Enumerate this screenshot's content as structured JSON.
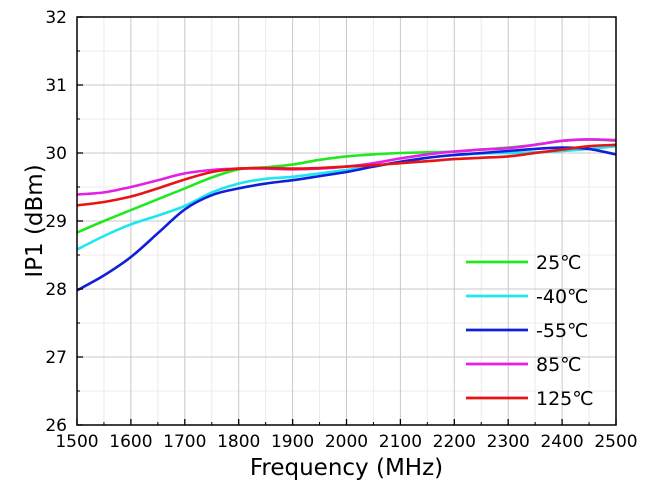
{
  "chart_data": {
    "type": "line",
    "title": "",
    "xlabel": "Frequency  (MHz)",
    "ylabel": "IP1 (dBm)",
    "xlim": [
      1500,
      2500
    ],
    "ylim": [
      26,
      32
    ],
    "xticks": [
      1500,
      1600,
      1700,
      1800,
      1900,
      2000,
      2100,
      2200,
      2300,
      2400,
      2500
    ],
    "yticks": [
      26,
      27,
      28,
      29,
      30,
      31,
      32
    ],
    "grid": true,
    "legend_position": "bottom-right",
    "series": [
      {
        "name": "25℃",
        "color": "#22e822",
        "x": [
          1500,
          1550,
          1600,
          1650,
          1700,
          1750,
          1800,
          1850,
          1900,
          1950,
          2000,
          2050,
          2100,
          2150,
          2200,
          2250,
          2300,
          2350,
          2400,
          2450,
          2500
        ],
        "y": [
          28.83,
          29.0,
          29.16,
          29.32,
          29.48,
          29.64,
          29.76,
          29.79,
          29.83,
          29.9,
          29.95,
          29.98,
          30.0,
          30.01,
          30.02,
          30.05,
          30.08,
          30.12,
          30.18,
          30.2,
          30.18
        ]
      },
      {
        "name": "-40℃",
        "color": "#1ee6f0",
        "x": [
          1500,
          1550,
          1600,
          1650,
          1700,
          1750,
          1800,
          1850,
          1900,
          1950,
          2000,
          2050,
          2100,
          2150,
          2200,
          2250,
          2300,
          2350,
          2400,
          2450,
          2500
        ],
        "y": [
          28.58,
          28.78,
          28.95,
          29.08,
          29.22,
          29.42,
          29.55,
          29.62,
          29.65,
          29.7,
          29.75,
          29.8,
          29.87,
          29.93,
          29.97,
          29.99,
          30.0,
          30.01,
          30.03,
          30.06,
          30.1
        ]
      },
      {
        "name": "-55℃",
        "color": "#1020d8",
        "x": [
          1500,
          1550,
          1600,
          1650,
          1700,
          1750,
          1800,
          1850,
          1900,
          1950,
          2000,
          2050,
          2100,
          2150,
          2200,
          2250,
          2300,
          2350,
          2400,
          2450,
          2500
        ],
        "y": [
          27.98,
          28.2,
          28.47,
          28.82,
          29.17,
          29.38,
          29.48,
          29.55,
          29.6,
          29.66,
          29.72,
          29.8,
          29.87,
          29.93,
          29.97,
          30.0,
          30.03,
          30.06,
          30.08,
          30.06,
          29.98
        ]
      },
      {
        "name": "85℃",
        "color": "#e61ee6",
        "x": [
          1500,
          1550,
          1600,
          1650,
          1700,
          1750,
          1800,
          1850,
          1900,
          1950,
          2000,
          2050,
          2100,
          2150,
          2200,
          2250,
          2300,
          2350,
          2400,
          2450,
          2500
        ],
        "y": [
          29.39,
          29.42,
          29.5,
          29.6,
          29.7,
          29.75,
          29.77,
          29.77,
          29.76,
          29.77,
          29.8,
          29.85,
          29.92,
          29.98,
          30.02,
          30.05,
          30.07,
          30.12,
          30.18,
          30.2,
          30.19
        ]
      },
      {
        "name": "125℃",
        "color": "#e81414",
        "x": [
          1500,
          1550,
          1600,
          1650,
          1700,
          1750,
          1800,
          1850,
          1900,
          1950,
          2000,
          2050,
          2100,
          2150,
          2200,
          2250,
          2300,
          2350,
          2400,
          2450,
          2500
        ],
        "y": [
          29.23,
          29.28,
          29.36,
          29.48,
          29.61,
          29.72,
          29.77,
          29.78,
          29.77,
          29.78,
          29.8,
          29.82,
          29.85,
          29.88,
          29.91,
          29.93,
          29.95,
          30.0,
          30.05,
          30.1,
          30.12
        ]
      }
    ]
  }
}
